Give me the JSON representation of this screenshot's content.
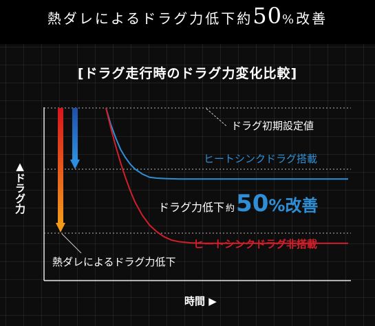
{
  "header": {
    "headline_pre": "熱ダレによるドラグ力低下約",
    "headline_num": "50",
    "headline_pct": "%",
    "headline_post": "改善"
  },
  "chart_data": {
    "type": "line",
    "title": "[ドラグ走行時のドラグ力変化比較]",
    "xlabel": "時間 ▶",
    "ylabel": "▲ドラグ力",
    "xlim": [
      0,
      100
    ],
    "ylim": [
      0,
      100
    ],
    "grid": true,
    "series": [
      {
        "name": "ヒートシンクドラグ搭載",
        "color": "#2f8fd6",
        "x": [
          0,
          2,
          4,
          6,
          8,
          10,
          12,
          15,
          18,
          21,
          25,
          30,
          40,
          60,
          80,
          100
        ],
        "y": [
          100,
          90,
          82,
          75,
          70,
          66,
          63,
          60,
          58,
          57.5,
          57.2,
          57,
          57,
          57,
          57,
          57
        ]
      },
      {
        "name": "ヒートシンクドラグ非搭載",
        "color": "#d01f2a",
        "x": [
          0,
          2,
          4,
          6,
          8,
          10,
          12,
          15,
          18,
          21,
          24,
          27,
          30,
          35,
          40,
          50,
          60,
          80,
          100
        ],
        "y": [
          100,
          88,
          77,
          67,
          58,
          50,
          43,
          35,
          29,
          25,
          22,
          20,
          19,
          18.3,
          18,
          18,
          18,
          18,
          18
        ]
      }
    ],
    "reference_lines": [
      {
        "label": "ドラグ初期設定値",
        "y": 100
      },
      {
        "label": "",
        "y": 57
      },
      {
        "label": "",
        "y": 18
      }
    ],
    "annotations": {
      "heat_drop_label": "熱ダレによるドラグ力低下",
      "improvement_pre": "ドラグ力低下",
      "improvement_approx": "約",
      "improvement_num": "50",
      "improvement_pct": "%",
      "improvement_post": "改善"
    },
    "arrows": [
      {
        "name": "blue-drop-arrow",
        "from_y": 100,
        "to_y": 57
      },
      {
        "name": "red-drop-arrow",
        "from_y": 100,
        "to_y": 18
      }
    ]
  }
}
